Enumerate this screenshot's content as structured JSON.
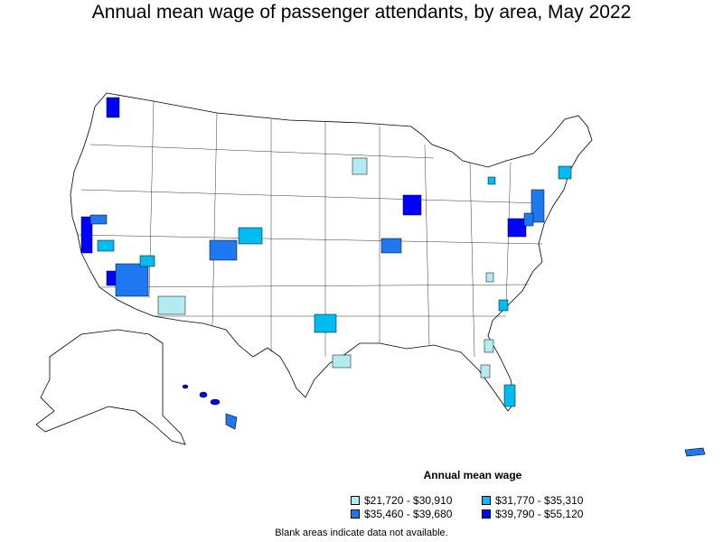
{
  "title": "Annual mean wage of passenger attendants, by area, May 2022",
  "legend": {
    "title": "Annual mean wage",
    "items": [
      {
        "label": "$21,720 - $30,910",
        "color": "#b2ebf2"
      },
      {
        "label": "$31,770 - $35,310",
        "color": "#00bcf0"
      },
      {
        "label": "$35,460 - $39,680",
        "color": "#1e78f0"
      },
      {
        "label": "$39,790 - $55,120",
        "color": "#0000ff"
      }
    ]
  },
  "note": "Blank areas indicate data not available."
}
